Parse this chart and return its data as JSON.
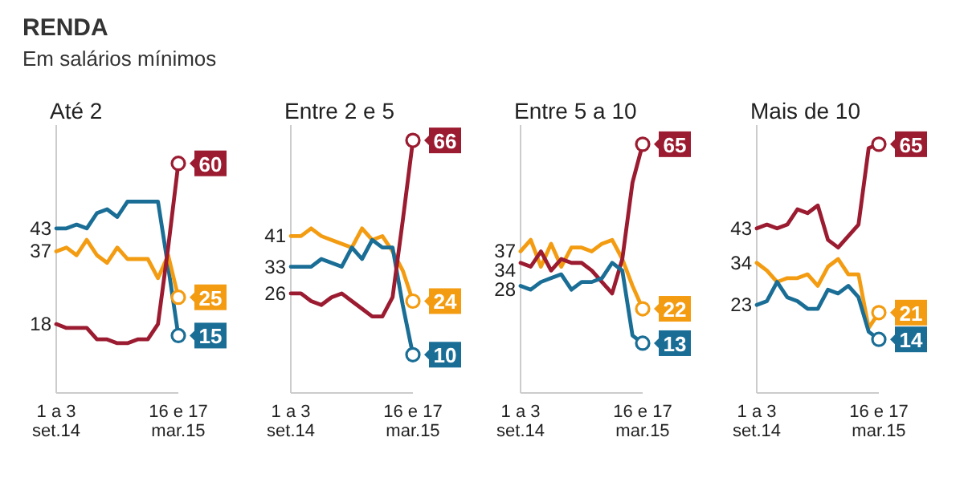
{
  "chart_data": [
    {
      "type": "other",
      "title": "RENDA",
      "subtitle": "Em salários mínimos"
    },
    {
      "type": "line",
      "title": "Até 2",
      "categories": [
        "1 a 3\nset.14",
        null,
        null,
        null,
        null,
        null,
        null,
        null,
        null,
        null,
        null,
        null,
        "16 e 17\nmar.15"
      ],
      "ylim": [
        0,
        70
      ],
      "series": [
        {
          "color": "#1a6e96",
          "values": [
            43,
            43,
            44,
            43,
            47,
            48,
            46,
            50,
            50,
            50,
            50,
            33,
            15
          ],
          "value_labels": [
            "43",
            null,
            null,
            null,
            null,
            null,
            null,
            null,
            null,
            null,
            null,
            null,
            "15"
          ]
        },
        {
          "color": "#f39c12",
          "values": [
            37,
            38,
            36,
            40,
            36,
            34,
            38,
            35,
            35,
            35,
            30,
            36,
            25
          ],
          "value_labels": [
            "37",
            null,
            null,
            null,
            null,
            null,
            null,
            null,
            null,
            null,
            null,
            null,
            "25"
          ]
        },
        {
          "color": "#9b1b30",
          "values": [
            18,
            17,
            17,
            17,
            14,
            14,
            13,
            13,
            14,
            14,
            18,
            38,
            60
          ],
          "value_labels": [
            "18",
            null,
            null,
            null,
            null,
            null,
            null,
            null,
            null,
            null,
            null,
            null,
            "60"
          ]
        }
      ]
    },
    {
      "type": "line",
      "title": "Entre 2 e 5",
      "categories": [
        "1 a 3\nset.14",
        null,
        null,
        null,
        null,
        null,
        null,
        null,
        null,
        null,
        null,
        null,
        "16 e 17\nmar.15"
      ],
      "ylim": [
        0,
        70
      ],
      "series": [
        {
          "color": "#f39c12",
          "values": [
            41,
            41,
            43,
            41,
            40,
            39,
            38,
            43,
            40,
            41,
            37,
            32,
            24
          ],
          "value_labels": [
            "41",
            null,
            null,
            null,
            null,
            null,
            null,
            null,
            null,
            null,
            null,
            null,
            "24"
          ]
        },
        {
          "color": "#1a6e96",
          "values": [
            33,
            33,
            33,
            35,
            34,
            33,
            38,
            35,
            40,
            38,
            38,
            23,
            10
          ],
          "value_labels": [
            "33",
            null,
            null,
            null,
            null,
            null,
            null,
            null,
            null,
            null,
            null,
            null,
            "10"
          ]
        },
        {
          "color": "#9b1b30",
          "values": [
            26,
            26,
            24,
            23,
            25,
            26,
            24,
            22,
            20,
            20,
            25,
            45,
            66
          ],
          "value_labels": [
            "26",
            null,
            null,
            null,
            null,
            null,
            null,
            null,
            null,
            null,
            null,
            null,
            "66"
          ]
        }
      ]
    },
    {
      "type": "line",
      "title": "Entre 5 a 10",
      "categories": [
        "1 a 3\nset.14",
        null,
        null,
        null,
        null,
        null,
        null,
        null,
        null,
        null,
        null,
        null,
        "16 e 17\nmar.15"
      ],
      "ylim": [
        0,
        70
      ],
      "series": [
        {
          "color": "#f39c12",
          "values": [
            37,
            40,
            33,
            39,
            33,
            38,
            38,
            37,
            39,
            40,
            35,
            28,
            22
          ],
          "value_labels": [
            "37",
            null,
            null,
            null,
            null,
            null,
            null,
            null,
            null,
            null,
            null,
            null,
            "22"
          ]
        },
        {
          "color": "#9b1b30",
          "values": [
            34,
            33,
            37,
            32,
            35,
            34,
            34,
            32,
            29,
            26,
            35,
            55,
            65
          ],
          "value_labels": [
            "34",
            null,
            null,
            null,
            null,
            null,
            null,
            null,
            null,
            null,
            null,
            null,
            "65"
          ]
        },
        {
          "color": "#1a6e96",
          "values": [
            28,
            27,
            29,
            30,
            31,
            27,
            29,
            29,
            30,
            34,
            32,
            15,
            13
          ],
          "value_labels": [
            "28",
            null,
            null,
            null,
            null,
            null,
            null,
            null,
            null,
            null,
            null,
            null,
            "13"
          ]
        }
      ]
    },
    {
      "type": "line",
      "title": "Mais de 10",
      "categories": [
        "1 a 3\nset.14",
        null,
        null,
        null,
        null,
        null,
        null,
        null,
        null,
        null,
        null,
        null,
        "16 e 17\nmar.15"
      ],
      "ylim": [
        0,
        70
      ],
      "series": [
        {
          "color": "#9b1b30",
          "values": [
            43,
            44,
            43,
            44,
            48,
            47,
            49,
            40,
            38,
            41,
            44,
            64,
            65
          ],
          "value_labels": [
            "43",
            null,
            null,
            null,
            null,
            null,
            null,
            null,
            null,
            null,
            null,
            null,
            "65"
          ]
        },
        {
          "color": "#f39c12",
          "values": [
            34,
            32,
            29,
            30,
            30,
            31,
            28,
            33,
            35,
            31,
            31,
            17,
            21
          ],
          "value_labels": [
            "34",
            null,
            null,
            null,
            null,
            null,
            null,
            null,
            null,
            null,
            null,
            null,
            "21"
          ]
        },
        {
          "color": "#1a6e96",
          "values": [
            23,
            24,
            29,
            25,
            24,
            22,
            22,
            27,
            26,
            28,
            25,
            16,
            14
          ],
          "value_labels": [
            "23",
            null,
            null,
            null,
            null,
            null,
            null,
            null,
            null,
            null,
            null,
            null,
            "14"
          ]
        }
      ]
    }
  ]
}
